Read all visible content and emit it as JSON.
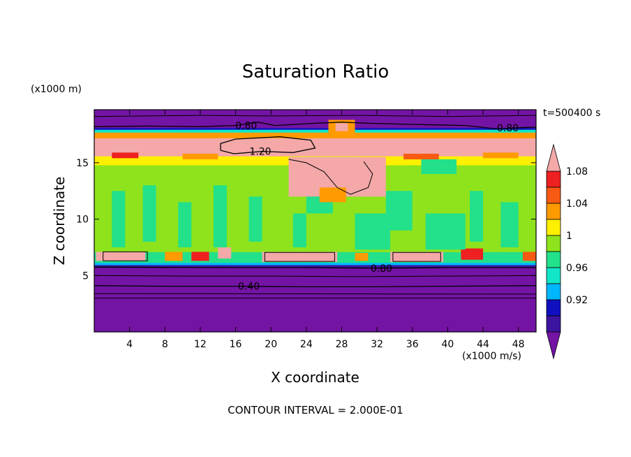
{
  "chart_data": {
    "type": "heatmap",
    "title": "Saturation Ratio",
    "xlabel": "X coordinate",
    "ylabel": "Z coordinate",
    "x_unit": "(x1000 m/s)",
    "y_unit": "(x1000 m)",
    "time_label": "t=500400 s",
    "footer": "CONTOUR INTERVAL = 2.000E-01",
    "xlim": [
      0,
      50
    ],
    "ylim": [
      0,
      19.7
    ],
    "x_ticks": [
      4,
      8,
      12,
      16,
      20,
      24,
      28,
      32,
      36,
      40,
      44,
      48
    ],
    "y_ticks": [
      5,
      10,
      15
    ],
    "grid": false,
    "colorbar": {
      "placement": "right",
      "labels": [
        "1.08",
        "1.04",
        "1",
        "0.96",
        "0.92"
      ],
      "label_values": [
        1.08,
        1.04,
        1.0,
        0.96,
        0.92
      ],
      "levels": [
        {
          "min": 1.1,
          "color": "#f4a8a8"
        },
        {
          "min": 1.08,
          "color": "#ee2020"
        },
        {
          "min": 1.06,
          "color": "#f85a14"
        },
        {
          "min": 1.04,
          "color": "#ff9a00"
        },
        {
          "min": 1.02,
          "color": "#ffef00"
        },
        {
          "min": 1.0,
          "color": "#8ee31d"
        },
        {
          "min": 0.98,
          "color": "#23e08a"
        },
        {
          "min": 0.96,
          "color": "#12e6c8"
        },
        {
          "min": 0.94,
          "color": "#00b6ff"
        },
        {
          "min": 0.92,
          "color": "#1010c0"
        },
        {
          "min": 0.9,
          "color": "#3c14a0"
        },
        {
          "min": 0.0,
          "color": "#7414a4"
        }
      ]
    },
    "bands": [
      {
        "z0": 0.0,
        "z1": 5.7,
        "value": 0.5
      },
      {
        "z0": 5.7,
        "z1": 5.95,
        "value": 0.91
      },
      {
        "z0": 5.95,
        "z1": 6.15,
        "value": 0.95
      },
      {
        "z0": 6.15,
        "z1": 7.1,
        "value": 0.99
      },
      {
        "z0": 7.1,
        "z1": 13.2,
        "value": 1.0
      },
      {
        "z0": 13.2,
        "z1": 14.8,
        "value": 1.01
      },
      {
        "z0": 14.8,
        "z1": 15.6,
        "value": 1.03
      },
      {
        "z0": 15.6,
        "z1": 17.2,
        "value": 1.15
      },
      {
        "z0": 17.2,
        "z1": 17.7,
        "value": 1.05
      },
      {
        "z0": 17.7,
        "z1": 17.95,
        "value": 0.97
      },
      {
        "z0": 17.95,
        "z1": 18.1,
        "value": 0.93
      },
      {
        "z0": 18.1,
        "z1": 19.7,
        "value": 0.6
      }
    ],
    "cells": [
      {
        "x0": 0.2,
        "x1": 5.8,
        "z0": 6.3,
        "z1": 7.1,
        "value": 1.15
      },
      {
        "x0": 19.0,
        "x1": 27.5,
        "z0": 6.2,
        "z1": 7.1,
        "value": 1.15
      },
      {
        "x0": 33.5,
        "x1": 39.5,
        "z0": 6.2,
        "z1": 7.1,
        "value": 1.15
      },
      {
        "x0": 8.0,
        "x1": 10.0,
        "z0": 6.3,
        "z1": 7.1,
        "value": 1.05
      },
      {
        "x0": 11.0,
        "x1": 13.0,
        "z0": 6.3,
        "z1": 7.1,
        "value": 1.09
      },
      {
        "x0": 14.0,
        "x1": 15.5,
        "z0": 6.5,
        "z1": 7.5,
        "value": 1.15
      },
      {
        "x0": 29.5,
        "x1": 31.0,
        "z0": 6.3,
        "z1": 7.0,
        "value": 1.05
      },
      {
        "x0": 41.5,
        "x1": 44.0,
        "z0": 6.4,
        "z1": 7.4,
        "value": 1.09
      },
      {
        "x0": 48.5,
        "x1": 50.0,
        "z0": 6.3,
        "z1": 7.1,
        "value": 1.07
      },
      {
        "x0": 2.0,
        "x1": 3.5,
        "z0": 7.5,
        "z1": 12.5,
        "value": 0.99
      },
      {
        "x0": 5.5,
        "x1": 7.0,
        "z0": 8.0,
        "z1": 13.0,
        "value": 0.99
      },
      {
        "x0": 9.5,
        "x1": 11.0,
        "z0": 7.5,
        "z1": 11.5,
        "value": 0.99
      },
      {
        "x0": 13.5,
        "x1": 15.0,
        "z0": 7.5,
        "z1": 13.0,
        "value": 0.99
      },
      {
        "x0": 17.5,
        "x1": 19.0,
        "z0": 8.0,
        "z1": 12.0,
        "value": 0.99
      },
      {
        "x0": 22.5,
        "x1": 24.0,
        "z0": 7.5,
        "z1": 10.5,
        "value": 0.99
      },
      {
        "x0": 24.0,
        "x1": 27.0,
        "z0": 10.5,
        "z1": 13.5,
        "value": 0.99
      },
      {
        "x0": 29.5,
        "x1": 33.5,
        "z0": 7.3,
        "z1": 10.5,
        "value": 0.99
      },
      {
        "x0": 33.0,
        "x1": 36.0,
        "z0": 9.0,
        "z1": 12.5,
        "value": 0.99
      },
      {
        "x0": 37.5,
        "x1": 42.0,
        "z0": 7.3,
        "z1": 10.5,
        "value": 0.99
      },
      {
        "x0": 42.5,
        "x1": 44.0,
        "z0": 8.0,
        "z1": 12.5,
        "value": 0.99
      },
      {
        "x0": 46.0,
        "x1": 48.0,
        "z0": 7.5,
        "z1": 11.5,
        "value": 0.99
      },
      {
        "x0": 22.0,
        "x1": 30.0,
        "z0": 13.5,
        "z1": 15.5,
        "value": 0.99
      },
      {
        "x0": 37.0,
        "x1": 41.0,
        "z0": 14.0,
        "z1": 15.3,
        "value": 0.99
      },
      {
        "x0": 22.0,
        "x1": 33.0,
        "z0": 12.0,
        "z1": 15.5,
        "value": 1.12
      },
      {
        "x0": 25.5,
        "x1": 28.5,
        "z0": 11.5,
        "z1": 12.8,
        "value": 1.05
      },
      {
        "x0": 2.0,
        "x1": 5.0,
        "z0": 15.4,
        "z1": 15.9,
        "value": 1.09
      },
      {
        "x0": 10.0,
        "x1": 14.0,
        "z0": 15.3,
        "z1": 15.8,
        "value": 1.05
      },
      {
        "x0": 35.0,
        "x1": 39.0,
        "z0": 15.3,
        "z1": 15.8,
        "value": 1.07
      },
      {
        "x0": 44.0,
        "x1": 48.0,
        "z0": 15.4,
        "z1": 15.9,
        "value": 1.05
      },
      {
        "x0": 26.5,
        "x1": 29.5,
        "z0": 17.6,
        "z1": 18.8,
        "value": 1.05
      },
      {
        "x0": 27.3,
        "x1": 28.7,
        "z0": 17.8,
        "z1": 18.5,
        "value": 1.15
      }
    ],
    "contours": [
      {
        "level": 1.2,
        "label": "1.20",
        "label_x": 18.8,
        "points": [
          [
            14.3,
            16.1
          ],
          [
            15.8,
            15.8
          ],
          [
            19.0,
            16.0
          ],
          [
            22.5,
            15.9
          ],
          [
            25.0,
            16.3
          ],
          [
            24.5,
            17.0
          ],
          [
            21.0,
            17.3
          ],
          [
            16.0,
            17.1
          ],
          [
            14.3,
            16.7
          ],
          [
            14.3,
            16.1
          ]
        ]
      },
      {
        "level": 0.8,
        "label": "0.80",
        "label_x": 17.2,
        "points": [
          [
            0.0,
            18.2
          ],
          [
            6.0,
            18.25
          ],
          [
            12.0,
            18.2
          ],
          [
            16.0,
            18.3
          ],
          [
            18.5,
            18.6
          ],
          [
            20.5,
            18.3
          ],
          [
            25.0,
            18.5
          ],
          [
            28.0,
            18.6
          ],
          [
            31.0,
            18.5
          ],
          [
            36.0,
            18.4
          ],
          [
            42.0,
            18.3
          ],
          [
            45.5,
            18.0
          ],
          [
            48.0,
            18.1
          ],
          [
            50.0,
            18.15
          ]
        ]
      },
      {
        "level": 0.8,
        "label": "0.80",
        "label_x": 46.8,
        "points": []
      },
      {
        "level": 0.8,
        "label": "0.80",
        "label_x": 32.5,
        "points": [
          [
            0.0,
            5.75
          ],
          [
            8.0,
            5.72
          ],
          [
            16.0,
            5.7
          ],
          [
            24.0,
            5.7
          ],
          [
            32.0,
            5.65
          ],
          [
            40.0,
            5.7
          ],
          [
            50.0,
            5.7
          ]
        ]
      },
      {
        "level": 0.4,
        "label": "0.40",
        "label_x": 17.5,
        "points": [
          [
            0.0,
            4.1
          ],
          [
            8.0,
            4.05
          ],
          [
            16.0,
            4.05
          ],
          [
            24.0,
            4.0
          ],
          [
            32.0,
            4.0
          ],
          [
            40.0,
            4.05
          ],
          [
            50.0,
            4.1
          ]
        ]
      }
    ],
    "extra_lines": [
      [
        [
          0.0,
          5.0
        ],
        [
          10.0,
          4.95
        ],
        [
          20.0,
          4.95
        ],
        [
          30.0,
          4.9
        ],
        [
          40.0,
          4.95
        ],
        [
          50.0,
          5.0
        ]
      ],
      [
        [
          0.0,
          3.4
        ],
        [
          50.0,
          3.35
        ]
      ],
      [
        [
          0.0,
          3.0
        ],
        [
          50.0,
          3.0
        ]
      ],
      [
        [
          0.0,
          19.1
        ],
        [
          12.0,
          19.2
        ],
        [
          20.0,
          19.15
        ],
        [
          30.0,
          19.2
        ],
        [
          40.0,
          19.1
        ],
        [
          50.0,
          19.2
        ]
      ],
      [
        [
          1.0,
          6.3
        ],
        [
          6.0,
          6.3
        ],
        [
          6.0,
          7.1
        ],
        [
          1.0,
          7.1
        ],
        [
          1.0,
          6.3
        ]
      ],
      [
        [
          19.3,
          6.25
        ],
        [
          27.2,
          6.25
        ],
        [
          27.2,
          7.05
        ],
        [
          19.3,
          7.05
        ],
        [
          19.3,
          6.25
        ]
      ],
      [
        [
          33.8,
          6.25
        ],
        [
          39.2,
          6.25
        ],
        [
          39.2,
          7.05
        ],
        [
          33.8,
          7.05
        ],
        [
          33.8,
          6.25
        ]
      ],
      [
        [
          22.0,
          15.3
        ],
        [
          24.0,
          15.0
        ],
        [
          26.0,
          14.2
        ],
        [
          27.5,
          12.8
        ],
        [
          29.0,
          12.2
        ],
        [
          31.0,
          12.8
        ],
        [
          31.5,
          14.0
        ],
        [
          30.5,
          15.1
        ]
      ]
    ]
  }
}
